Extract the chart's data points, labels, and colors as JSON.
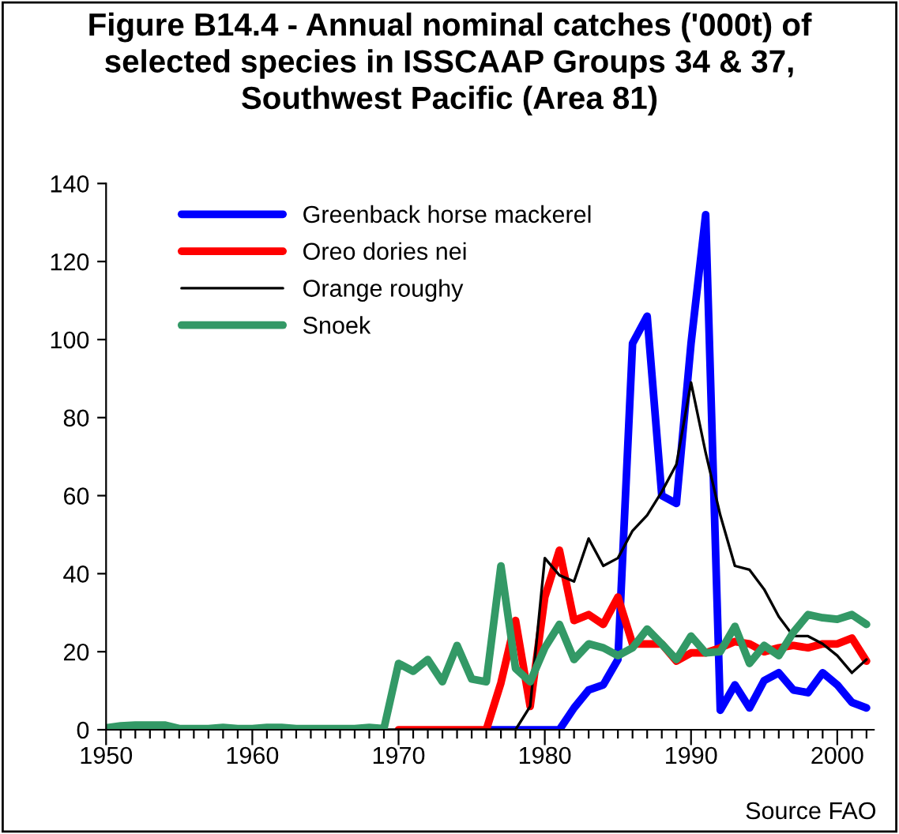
{
  "chart_data": {
    "type": "line",
    "title": "Figure B14.4 - Annual nominal catches ('000t) of\nselected species in ISSCAAP Groups 34 & 37,\nSouthwest Pacific (Area 81)",
    "annotations": [
      "Source FAO"
    ],
    "x": [
      1950,
      1951,
      1952,
      1953,
      1954,
      1955,
      1956,
      1957,
      1958,
      1959,
      1960,
      1961,
      1962,
      1963,
      1964,
      1965,
      1966,
      1967,
      1968,
      1969,
      1970,
      1971,
      1972,
      1973,
      1974,
      1975,
      1976,
      1977,
      1978,
      1979,
      1980,
      1981,
      1982,
      1983,
      1984,
      1985,
      1986,
      1987,
      1988,
      1989,
      1990,
      1991,
      1992,
      1993,
      1994,
      1995,
      1996,
      1997,
      1998,
      1999,
      2000,
      2001,
      2002
    ],
    "series": [
      {
        "name": "Greenback horse mackerel",
        "color": "#0000ff",
        "values": [
          null,
          null,
          null,
          null,
          null,
          null,
          null,
          null,
          null,
          null,
          null,
          null,
          null,
          null,
          null,
          null,
          null,
          null,
          null,
          null,
          null,
          null,
          null,
          null,
          null,
          null,
          0,
          0,
          0,
          0,
          0,
          0,
          5.6,
          10.2,
          11.5,
          18,
          99,
          106,
          60,
          58,
          99,
          132,
          5,
          11.5,
          5.6,
          12.6,
          14.6,
          10.2,
          9.5,
          14.6,
          11.5,
          7,
          5.6
        ]
      },
      {
        "name": "Oreo dories nei",
        "color": "#ff0000",
        "values": [
          null,
          null,
          null,
          null,
          null,
          null,
          null,
          null,
          null,
          null,
          null,
          null,
          null,
          null,
          null,
          null,
          null,
          null,
          null,
          null,
          0,
          0,
          0,
          0,
          0,
          0,
          0,
          12,
          28,
          6,
          34,
          46,
          28,
          29.5,
          27,
          34,
          22,
          22,
          22,
          17.6,
          19.7,
          19.7,
          21,
          22.6,
          22,
          20,
          21,
          21.6,
          21,
          22,
          22,
          23.5,
          17.6
        ]
      },
      {
        "name": "Orange roughy",
        "color": "#000000",
        "values": [
          0,
          0,
          0,
          0,
          0,
          0,
          0,
          0,
          0,
          0,
          0,
          0,
          0,
          0,
          0,
          0,
          0,
          0,
          0,
          0,
          0,
          0,
          0,
          0,
          0,
          0,
          0,
          0,
          0,
          6,
          44,
          39.6,
          38,
          49,
          42,
          44,
          51,
          55,
          61,
          68,
          89,
          71,
          55,
          42,
          41,
          36,
          29,
          24,
          24,
          22,
          19,
          14.6,
          18
        ]
      },
      {
        "name": "Snoek",
        "color": "#339966",
        "values": [
          0.5,
          1,
          1.2,
          1.2,
          1.2,
          0.3,
          0.3,
          0.3,
          0.6,
          0.3,
          0.3,
          0.6,
          0.6,
          0.3,
          0.3,
          0.3,
          0.3,
          0.3,
          0.6,
          0.3,
          17,
          15,
          18,
          12.3,
          21.6,
          13,
          12.3,
          42,
          15.7,
          12.3,
          21,
          27,
          18,
          22,
          21,
          19,
          21,
          25.8,
          22,
          18,
          24,
          19.7,
          20,
          26.5,
          17,
          21.6,
          19,
          25,
          29.5,
          28.7,
          28.3,
          29.5,
          27
        ]
      }
    ],
    "xlim": [
      1950,
      2002.5
    ],
    "xticks": [
      1950,
      {
        "value": 1951,
        "label": null
      },
      {
        "value": 1952,
        "label": null
      },
      {
        "value": 1953,
        "label": null
      },
      {
        "value": 1954,
        "label": null
      },
      {
        "value": 1955,
        "label": null
      },
      {
        "value": 1956,
        "label": null
      },
      {
        "value": 1957,
        "label": null
      },
      {
        "value": 1958,
        "label": null
      },
      {
        "value": 1959,
        "label": null
      },
      1960,
      {
        "value": 1961,
        "label": null
      },
      {
        "value": 1962,
        "label": null
      },
      {
        "value": 1963,
        "label": null
      },
      {
        "value": 1964,
        "label": null
      },
      {
        "value": 1965,
        "label": null
      },
      {
        "value": 1966,
        "label": null
      },
      {
        "value": 1967,
        "label": null
      },
      {
        "value": 1968,
        "label": null
      },
      {
        "value": 1969,
        "label": null
      },
      1970,
      {
        "value": 1971,
        "label": null
      },
      {
        "value": 1972,
        "label": null
      },
      {
        "value": 1973,
        "label": null
      },
      {
        "value": 1974,
        "label": null
      },
      {
        "value": 1975,
        "label": null
      },
      {
        "value": 1976,
        "label": null
      },
      {
        "value": 1977,
        "label": null
      },
      {
        "value": 1978,
        "label": null
      },
      {
        "value": 1979,
        "label": null
      },
      1980,
      {
        "value": 1981,
        "label": null
      },
      {
        "value": 1982,
        "label": null
      },
      {
        "value": 1983,
        "label": null
      },
      {
        "value": 1984,
        "label": null
      },
      {
        "value": 1985,
        "label": null
      },
      {
        "value": 1986,
        "label": null
      },
      {
        "value": 1987,
        "label": null
      },
      {
        "value": 1988,
        "label": null
      },
      {
        "value": 1989,
        "label": null
      },
      1990,
      {
        "value": 1991,
        "label": null
      },
      {
        "value": 1992,
        "label": null
      },
      {
        "value": 1993,
        "label": null
      },
      {
        "value": 1994,
        "label": null
      },
      {
        "value": 1995,
        "label": null
      },
      {
        "value": 1996,
        "label": null
      },
      {
        "value": 1997,
        "label": null
      },
      {
        "value": 1998,
        "label": null
      },
      {
        "value": 1999,
        "label": null
      },
      2000,
      {
        "value": 2001,
        "label": null
      },
      {
        "value": 2002,
        "label": null
      }
    ],
    "ylim": [
      0,
      140
    ],
    "yticks": [
      0,
      20,
      40,
      60,
      80,
      100,
      120,
      140
    ],
    "grid": false,
    "legend": "top left",
    "marker": "none",
    "line_style": "solid"
  }
}
